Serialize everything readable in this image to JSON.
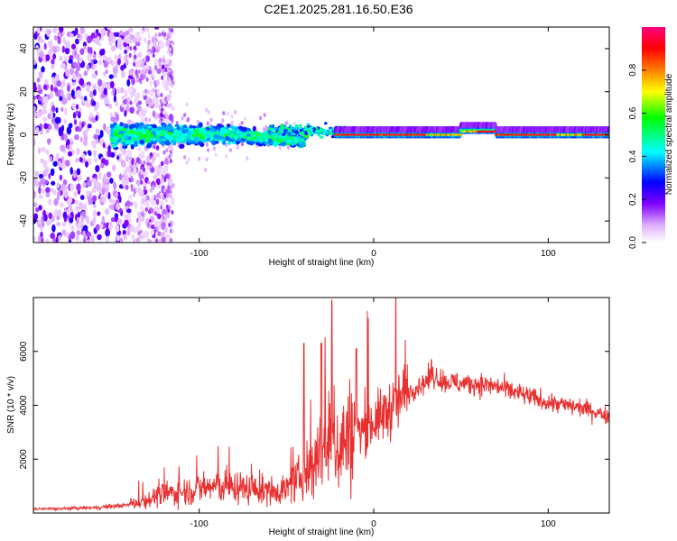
{
  "title": "C2E1.2025.281.16.50.E36",
  "chart_data": [
    {
      "type": "heatmap",
      "name": "spectrogram",
      "xlabel": "Height of straight line (km)",
      "ylabel": "Frequency (Hz)",
      "xlim": [
        -195,
        135
      ],
      "ylim": [
        -50,
        50
      ],
      "xticks": [
        -100,
        0,
        100
      ],
      "yticks": [
        -40,
        -20,
        0,
        20,
        40
      ],
      "colorbar": {
        "label": "Normalized spectral amplitude",
        "range": [
          0,
          1
        ],
        "ticks": [
          0.0,
          0.2,
          0.4,
          0.6,
          0.8
        ],
        "tick_labels": [
          "0.0",
          "0.2",
          "0.4",
          "0.6",
          "0.8"
        ],
        "colormap": [
          "#ffffff",
          "#e0b0ff",
          "#8000ff",
          "#0000ff",
          "#00ffff",
          "#00ff00",
          "#ffff00",
          "#ff8000",
          "#ff0000",
          "#ff0080"
        ]
      },
      "description_series": [
        {
          "name": "scattered noise band",
          "x_range": [
            -195,
            -120
          ],
          "freq_range": [
            -50,
            50
          ],
          "amplitude": 0.15
        },
        {
          "name": "broad signal",
          "x_range": [
            -150,
            -40
          ],
          "freq_center": 0,
          "freq_spread": 10,
          "amplitude": 0.35
        },
        {
          "name": "narrow carrier",
          "x_range": [
            -20,
            135
          ],
          "freq_center": 0,
          "freq_spread": 1,
          "amplitude": 0.95
        }
      ]
    },
    {
      "type": "line",
      "name": "snr",
      "xlabel": "Height of straight line (km)",
      "ylabel": "SNR (10 * v/v)",
      "xlim": [
        -195,
        135
      ],
      "ylim": [
        0,
        8000
      ],
      "xticks": [
        -100,
        0,
        100
      ],
      "yticks": [
        2000,
        4000,
        6000
      ],
      "color": "#e83030",
      "series": [
        {
          "name": "SNR",
          "x": [
            -195,
            -180,
            -160,
            -140,
            -130,
            -120,
            -110,
            -100,
            -90,
            -80,
            -70,
            -60,
            -50,
            -40,
            -35,
            -30,
            -25,
            -20,
            -15,
            -10,
            -5,
            0,
            5,
            10,
            15,
            20,
            25,
            30,
            35,
            40,
            50,
            60,
            70,
            80,
            90,
            100,
            110,
            120,
            130,
            135
          ],
          "y": [
            150,
            160,
            200,
            300,
            500,
            700,
            800,
            900,
            1000,
            950,
            900,
            800,
            900,
            1400,
            1800,
            2200,
            2600,
            2500,
            2800,
            3000,
            3200,
            3400,
            3600,
            3900,
            4200,
            4500,
            4700,
            4900,
            5100,
            4900,
            4800,
            4800,
            4700,
            4500,
            4300,
            4100,
            4000,
            3900,
            3700,
            3600
          ],
          "peaks": [
            {
              "x": -40,
              "y": 6300
            },
            {
              "x": -30,
              "y": 6300
            },
            {
              "x": -24,
              "y": 7900
            },
            {
              "x": -10,
              "y": 6100
            },
            {
              "x": 33,
              "y": 5700
            }
          ]
        }
      ]
    }
  ]
}
